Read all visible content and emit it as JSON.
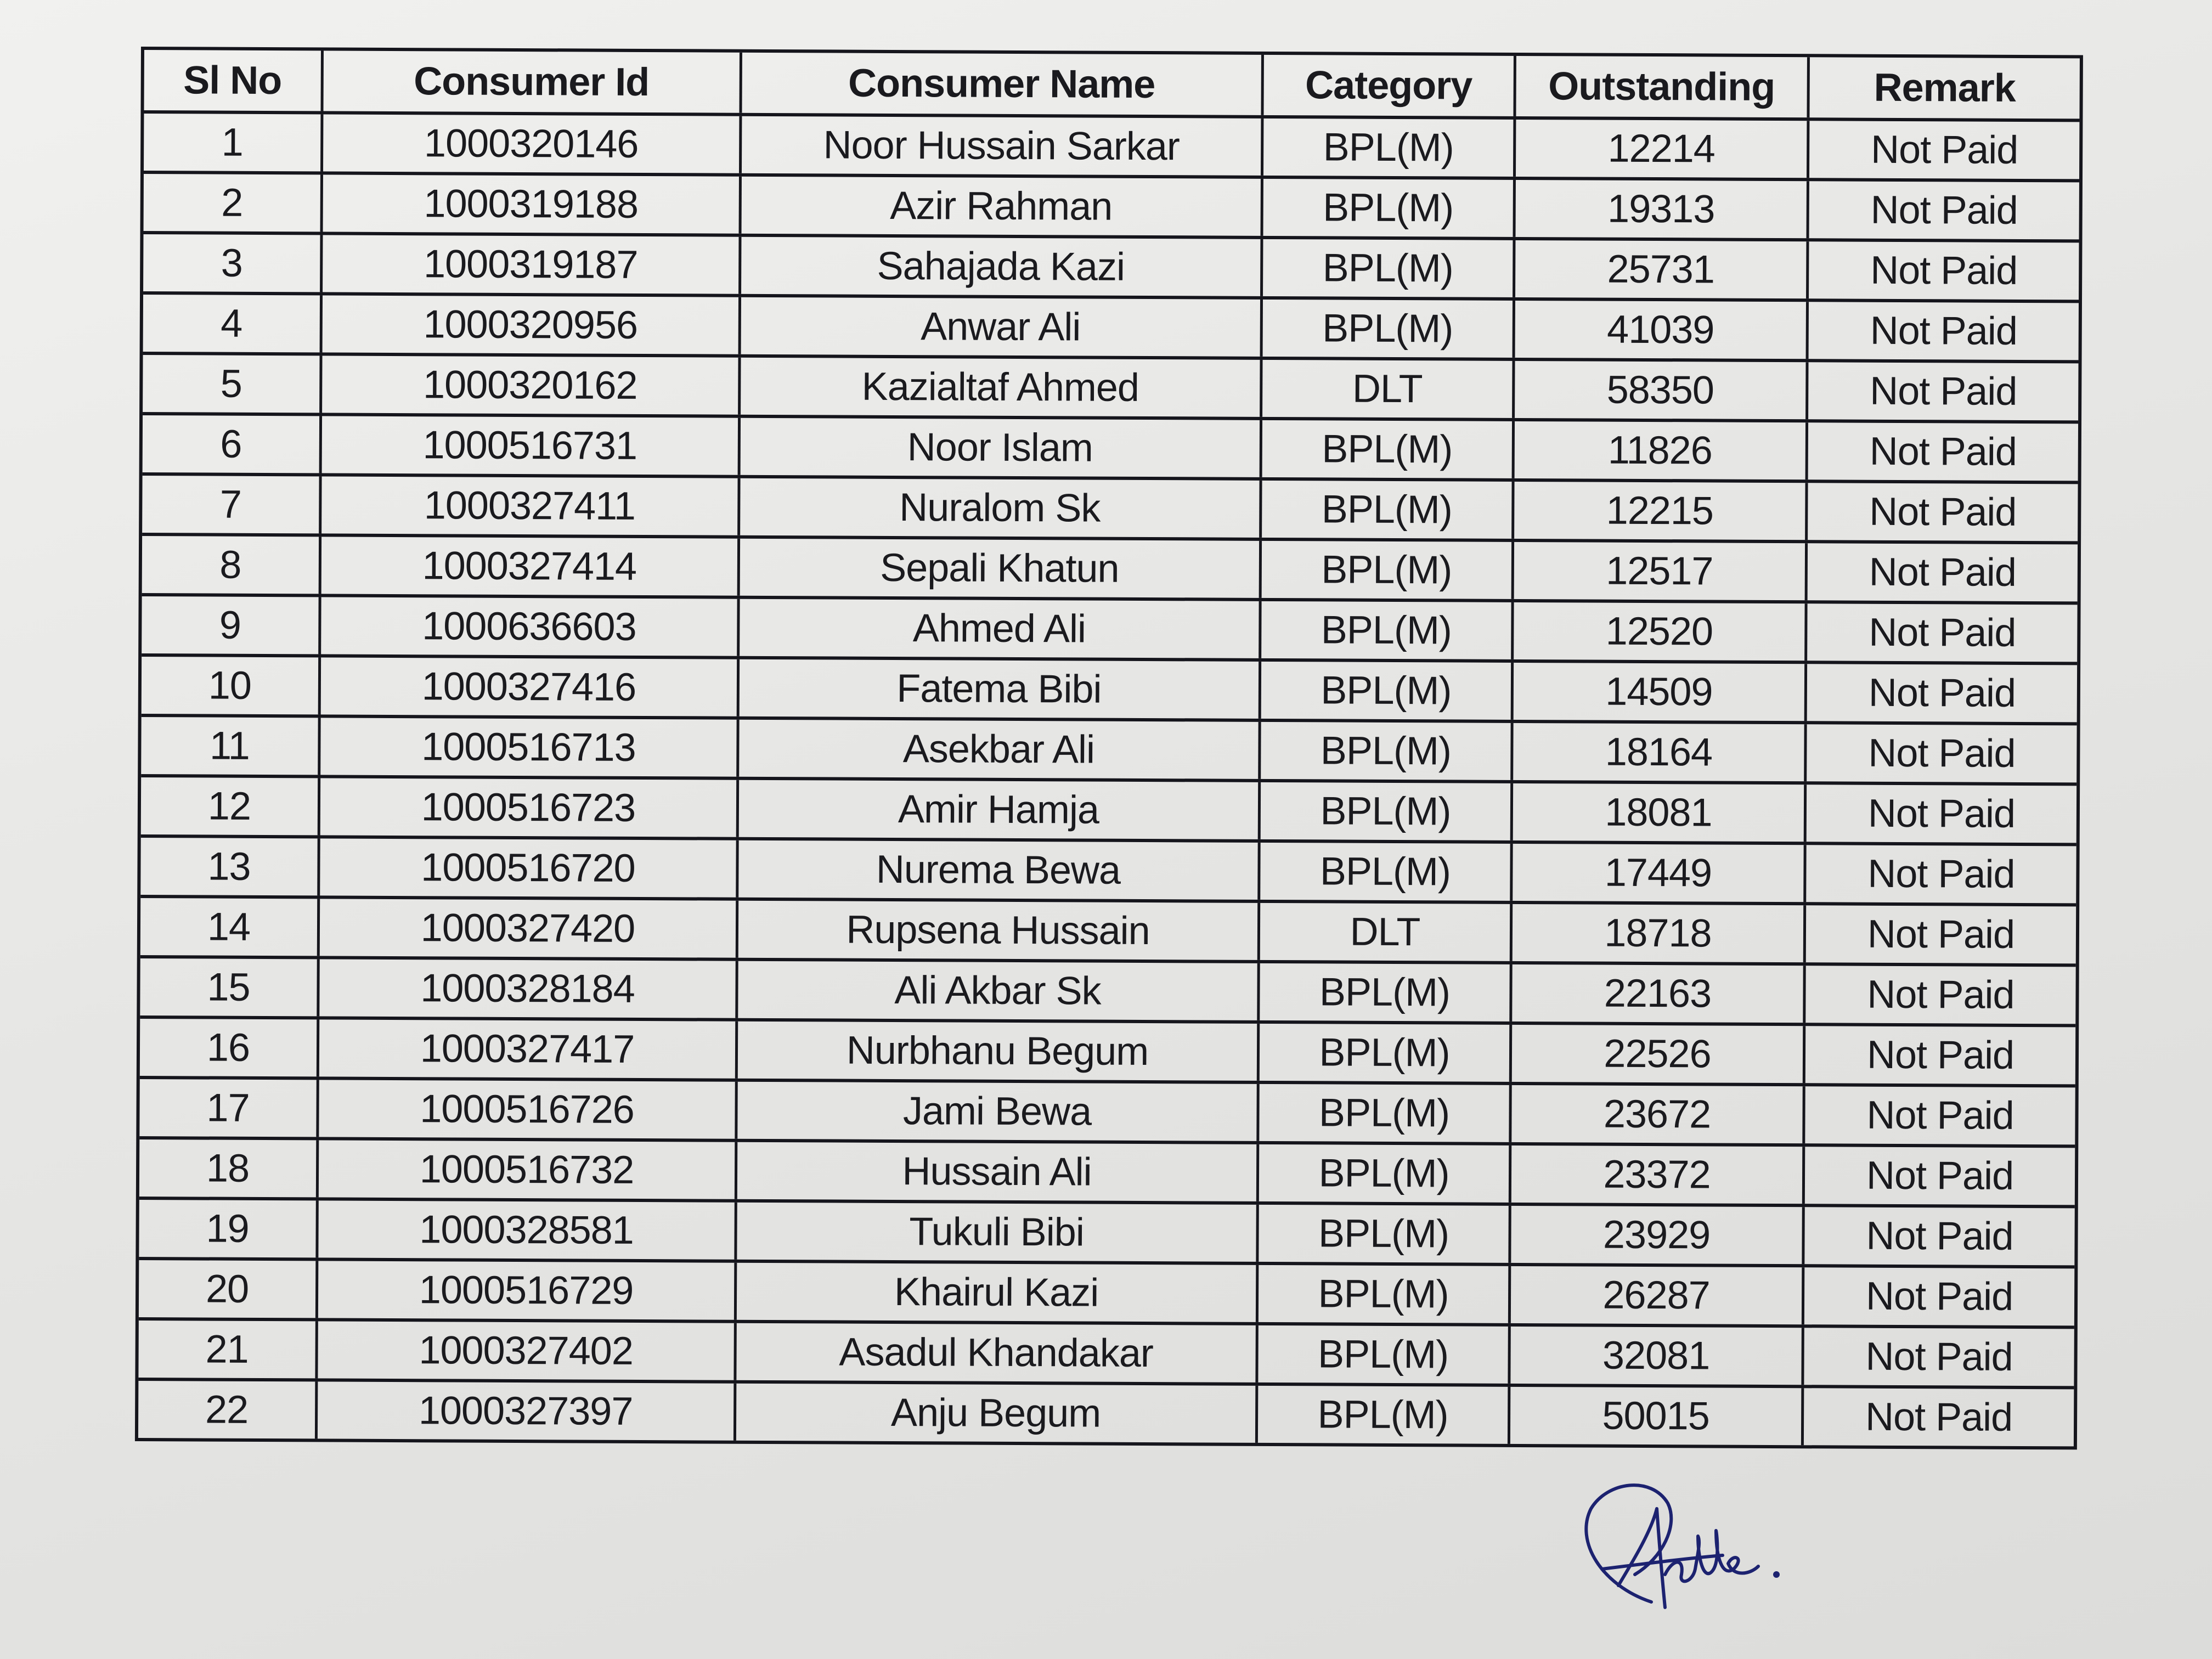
{
  "document": {
    "columns": [
      "Sl No",
      "Consumer Id",
      "Consumer Name",
      "Category",
      "Outstanding",
      "Remark"
    ],
    "rows": [
      [
        "1",
        "1000320146",
        "Noor Hussain Sarkar",
        "BPL(M)",
        "12214",
        "Not Paid"
      ],
      [
        "2",
        "1000319188",
        "Azir Rahman",
        "BPL(M)",
        "19313",
        "Not Paid"
      ],
      [
        "3",
        "1000319187",
        "Sahajada Kazi",
        "BPL(M)",
        "25731",
        "Not Paid"
      ],
      [
        "4",
        "1000320956",
        "Anwar Ali",
        "BPL(M)",
        "41039",
        "Not Paid"
      ],
      [
        "5",
        "1000320162",
        "Kazialtaf Ahmed",
        "DLT",
        "58350",
        "Not Paid"
      ],
      [
        "6",
        "1000516731",
        "Noor Islam",
        "BPL(M)",
        "11826",
        "Not Paid"
      ],
      [
        "7",
        "1000327411",
        "Nuralom Sk",
        "BPL(M)",
        "12215",
        "Not Paid"
      ],
      [
        "8",
        "1000327414",
        "Sepali Khatun",
        "BPL(M)",
        "12517",
        "Not Paid"
      ],
      [
        "9",
        "1000636603",
        "Ahmed Ali",
        "BPL(M)",
        "12520",
        "Not Paid"
      ],
      [
        "10",
        "1000327416",
        "Fatema Bibi",
        "BPL(M)",
        "14509",
        "Not Paid"
      ],
      [
        "11",
        "1000516713",
        "Asekbar Ali",
        "BPL(M)",
        "18164",
        "Not Paid"
      ],
      [
        "12",
        "1000516723",
        "Amir Hamja",
        "BPL(M)",
        "18081",
        "Not Paid"
      ],
      [
        "13",
        "1000516720",
        "Nurema Bewa",
        "BPL(M)",
        "17449",
        "Not Paid"
      ],
      [
        "14",
        "1000327420",
        "Rupsena Hussain",
        "DLT",
        "18718",
        "Not Paid"
      ],
      [
        "15",
        "1000328184",
        "Ali Akbar Sk",
        "BPL(M)",
        "22163",
        "Not Paid"
      ],
      [
        "16",
        "1000327417",
        "Nurbhanu Begum",
        "BPL(M)",
        "22526",
        "Not Paid"
      ],
      [
        "17",
        "1000516726",
        "Jami Bewa",
        "BPL(M)",
        "23672",
        "Not Paid"
      ],
      [
        "18",
        "1000516732",
        "Hussain Ali",
        "BPL(M)",
        "23372",
        "Not Paid"
      ],
      [
        "19",
        "1000328581",
        "Tukuli Bibi",
        "BPL(M)",
        "23929",
        "Not Paid"
      ],
      [
        "20",
        "1000516729",
        "Khairul Kazi",
        "BPL(M)",
        "26287",
        "Not Paid"
      ],
      [
        "21",
        "1000327402",
        "Asadul Khandakar",
        "BPL(M)",
        "32081",
        "Not Paid"
      ],
      [
        "22",
        "1000327397",
        "Anju Begum",
        "BPL(M)",
        "50015",
        "Not Paid"
      ]
    ]
  },
  "signature": {
    "ink_color": "#1c2270"
  }
}
